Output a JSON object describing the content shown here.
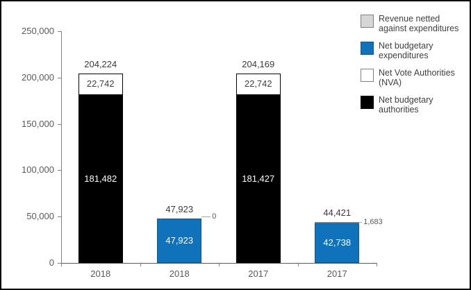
{
  "colors": {
    "accent_blue": "#1072BA",
    "accent_blue_border": "#0B5A94",
    "black": "#000000",
    "white": "#FFFFFF",
    "gray_fill": "#D6D6D6",
    "gray_border": "#7F7F7F",
    "axis_gray": "#808080",
    "label_gray": "#595959"
  },
  "legend": {
    "items": [
      {
        "label": "Revenue netted against expenditures",
        "color": "#D6D6D6",
        "border": "#7F7F7F"
      },
      {
        "label": "Net budgetary expenditures",
        "color": "#1072BA",
        "border": "#0B5A94"
      },
      {
        "label": "Net Vote Authorities (NVA)",
        "color": "#FFFFFF",
        "border": "#7F7F7F"
      },
      {
        "label": "Net budgetary authorities",
        "color": "#000000",
        "border": "#000000"
      }
    ]
  },
  "chart_data": {
    "type": "bar",
    "stacked": true,
    "title": "",
    "xlabel": "",
    "ylabel": "",
    "ylim": [
      0,
      250000
    ],
    "y_ticks": [
      "0",
      "50,000",
      "100,000",
      "150,000",
      "200,000",
      "250,000"
    ],
    "categories": [
      "2018",
      "2018",
      "2017",
      "2017"
    ],
    "grid": false,
    "legend_position": "top-right",
    "series_names": [
      "Revenue netted against expenditures",
      "Net budgetary expenditures",
      "Net Vote Authorities (NVA)",
      "Net budgetary authorities"
    ],
    "bars": [
      {
        "category": "2018",
        "total": 204224,
        "total_label": "204,224",
        "segments": [
          {
            "series": "Net budgetary authorities",
            "value": 181482,
            "label": "181,482",
            "color": "#000000",
            "border": "#000000",
            "text_color": "#FFFFFF"
          },
          {
            "series": "Net Vote Authorities (NVA)",
            "value": 22742,
            "label": "22,742",
            "color": "#FFFFFF",
            "border": "#000000",
            "text_color": "#404040"
          }
        ]
      },
      {
        "category": "2018",
        "total": 47923,
        "total_label": "47,923",
        "callout": {
          "series": "Revenue netted against expenditures",
          "value": 0,
          "label": "0"
        },
        "segments": [
          {
            "series": "Net budgetary expenditures",
            "value": 47923,
            "label": "47,923",
            "color": "#1072BA",
            "border": "#0B5A94",
            "text_color": "#FFFFFF"
          },
          {
            "series": "Revenue netted against expenditures",
            "value": 0,
            "label": "",
            "color": "#D6D6D6",
            "border": "#7F7F7F"
          }
        ]
      },
      {
        "category": "2017",
        "total": 204169,
        "total_label": "204,169",
        "segments": [
          {
            "series": "Net budgetary authorities",
            "value": 181427,
            "label": "181,427",
            "color": "#000000",
            "border": "#000000",
            "text_color": "#FFFFFF"
          },
          {
            "series": "Net Vote Authorities (NVA)",
            "value": 22742,
            "label": "22,742",
            "color": "#FFFFFF",
            "border": "#000000",
            "text_color": "#404040"
          }
        ]
      },
      {
        "category": "2017",
        "total": 44421,
        "total_label": "44,421",
        "callout": {
          "series": "Revenue netted against expenditures",
          "value": 1683,
          "label": "1,683"
        },
        "segments": [
          {
            "series": "Net budgetary expenditures",
            "value": 42738,
            "label": "42,738",
            "color": "#1072BA",
            "border": "#0B5A94",
            "text_color": "#FFFFFF"
          },
          {
            "series": "Revenue netted against expenditures",
            "value": 1683,
            "label": "",
            "color": "#D6D6D6",
            "border": "#7F7F7F"
          }
        ]
      }
    ]
  }
}
